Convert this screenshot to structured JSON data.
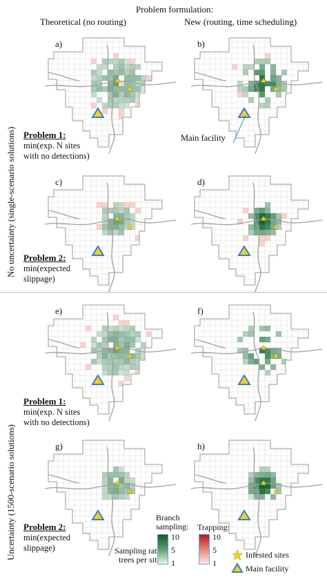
{
  "header": {
    "title": "Problem formulation:",
    "col_left": "Theoretical (no routing)",
    "col_right": "New (routing, time scheduling)"
  },
  "row_labels": {
    "top": "No uncertainty (single-scenario solutions)",
    "bottom": "Uncertainty (1500-scenario solutions)"
  },
  "problems": {
    "p1_title": "Problem 1:",
    "p1_line1": "min(exp. N sites",
    "p1_line2": "with no detections)",
    "p2_title": "Problem 2:",
    "p2_line1": "min(expected",
    "p2_line2": "slippage)"
  },
  "panels": [
    {
      "label": "a)",
      "shading": "broad-light-green",
      "has_trapping": true
    },
    {
      "label": "b)",
      "shading": "mixed-red-green",
      "has_trapping": true
    },
    {
      "label": "c)",
      "shading": "focused-green",
      "has_trapping": true
    },
    {
      "label": "d)",
      "shading": "dark-green-cluster",
      "has_trapping": true
    },
    {
      "label": "e)",
      "shading": "broad-light-green",
      "has_trapping": true
    },
    {
      "label": "f)",
      "shading": "scattered-green",
      "has_trapping": false
    },
    {
      "label": "g)",
      "shading": "focused-green",
      "has_trapping": false
    },
    {
      "label": "h)",
      "shading": "dark-green-cluster",
      "has_trapping": false
    }
  ],
  "annotation": {
    "main_facility": "Main facility"
  },
  "legend": {
    "sampling_rate_line1": "Sampling rate,",
    "sampling_rate_line2": "trees per site:",
    "branch_line1": "Branch",
    "branch_line2": "sampling:",
    "branch_ticks": [
      "10",
      "5",
      "1"
    ],
    "trapping": "Trapping:",
    "trapping_ticks": [
      "10",
      "5",
      "1"
    ],
    "infested": "Infested sites",
    "facility": "Main facility",
    "colors": {
      "green_dark": "#0f5a2a",
      "green_light": "#d7ecdf",
      "red_dark": "#b31b1b",
      "red_light": "#f7dcd2",
      "star": "#f2d21b",
      "triangle": "#f2d21b",
      "triangle_edge": "#3a7bd5"
    }
  }
}
